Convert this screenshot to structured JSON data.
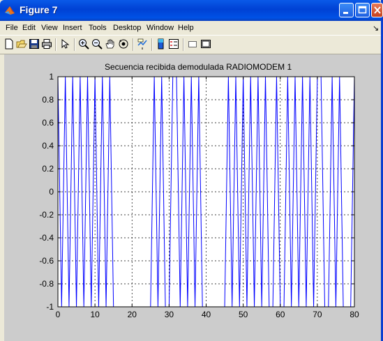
{
  "window": {
    "title": "Figure 7",
    "title_color": "#ffffff"
  },
  "menu": {
    "items": [
      "File",
      "Edit",
      "View",
      "Insert",
      "Tools",
      "Desktop",
      "Window",
      "Help"
    ]
  },
  "toolbar": {
    "icons": [
      "new-figure-icon",
      "open-file-icon",
      "save-icon",
      "print-icon",
      "edit-plot-arrow-icon",
      "zoom-in-icon",
      "zoom-out-icon",
      "pan-hand-icon",
      "rotate-3d-icon",
      "data-cursor-icon",
      "colorbar-icon",
      "legend-icon",
      "hide-plot-tools-icon",
      "show-plot-tools-icon"
    ]
  },
  "chart_data": {
    "type": "line",
    "title": "Secuencia recibida demodulada RADIOMODEM 1",
    "xlabel": "",
    "ylabel": "",
    "xlim": [
      0,
      80
    ],
    "ylim": [
      -1,
      1
    ],
    "xticks": [
      "0",
      "10",
      "20",
      "30",
      "40",
      "50",
      "60",
      "70",
      "80"
    ],
    "yticks": [
      "1",
      "0.8",
      "0.6",
      "0.4",
      "0.2",
      "0",
      "-0.2",
      "-0.4",
      "-0.6",
      "-0.8",
      "-1"
    ],
    "grid": true,
    "line_color": "#0000ff",
    "series": [
      {
        "name": "",
        "values": [
          1,
          -1,
          1,
          -1,
          1,
          -1,
          1,
          -1,
          1,
          -1,
          1,
          -1,
          1,
          -1,
          1,
          -1,
          -1,
          -1,
          -1,
          -1,
          -1,
          -1,
          -1,
          -1,
          -1,
          -1,
          1,
          -1,
          1,
          -1,
          -1,
          1,
          1,
          -1,
          1,
          -1,
          1,
          -1,
          1,
          -1,
          -1,
          -1,
          -1,
          -1,
          -1,
          -1,
          1,
          -1,
          1,
          -1,
          1,
          -1,
          1,
          -1,
          1,
          -1,
          1,
          -1,
          -1,
          1,
          -1,
          -1,
          1,
          -1,
          1,
          -1,
          1,
          -1,
          1,
          -1,
          1,
          1,
          -1,
          -1,
          1,
          -1,
          1,
          -1,
          -1,
          -1,
          1
        ]
      }
    ]
  }
}
